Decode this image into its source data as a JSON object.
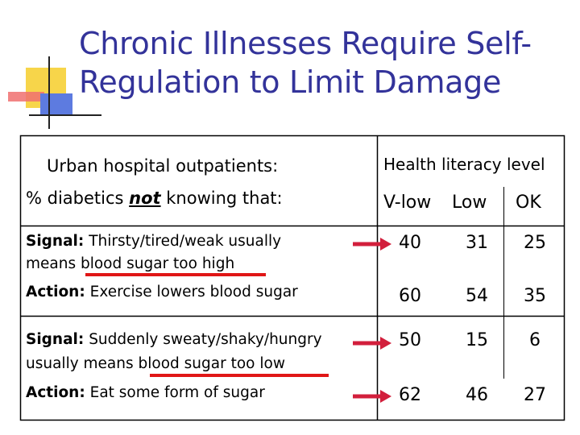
{
  "slide": {
    "title_line1": "Chronic Illnesses Require Self-",
    "title_line2": "Regulation to Limit Damage"
  },
  "table": {
    "header_left_line1": "Urban hospital outpatients:",
    "header_left_line2_pre": "% diabetics ",
    "header_left_line2_emph": "not",
    "header_left_line2_post": " knowing that:",
    "header_right": "Health literacy level",
    "columns": [
      "V-low",
      "Low",
      "OK"
    ],
    "rows": [
      {
        "label_bold": "Signal:",
        "label_text": " Thirsty/tired/weak usually",
        "label_line2": "means blood sugar too high",
        "values": [
          "40",
          "31",
          "25"
        ]
      },
      {
        "label_bold": "Action:",
        "label_text": " Exercise lowers blood sugar",
        "label_line2": "",
        "values": [
          "60",
          "54",
          "35"
        ]
      },
      {
        "label_bold": "Signal:",
        "label_text": " Suddenly sweaty/shaky/hungry",
        "label_line2": "usually means blood sugar too low",
        "values": [
          "50",
          "15",
          "6"
        ]
      },
      {
        "label_bold": "Action:",
        "label_text": " Eat some form of sugar",
        "label_line2": "",
        "values": [
          "62",
          "46",
          "27"
        ]
      }
    ]
  },
  "colors": {
    "title": "#33339a",
    "underline": "#e01616",
    "arrow": "#d21f3c",
    "deco_yellow": "#f7d54a",
    "deco_red": "#f07070",
    "deco_blue": "#5d7be0"
  }
}
